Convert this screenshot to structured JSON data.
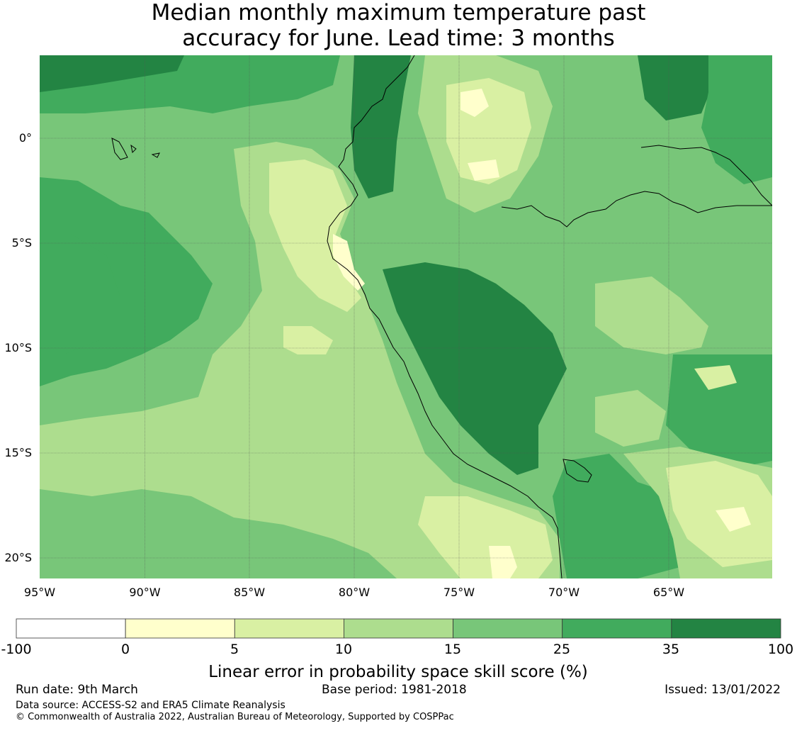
{
  "title": {
    "line1": "Median monthly maximum temperature past",
    "line2": "accuracy for June. Lead time: 3 months"
  },
  "map": {
    "lon_labels": [
      "95°W",
      "90°W",
      "85°W",
      "80°W",
      "75°W",
      "70°W",
      "65°W"
    ],
    "lat_labels": [
      "0°",
      "5°S",
      "10°S",
      "15°S",
      "20°S"
    ],
    "gridlines": true,
    "region": "Peru / Ecuador / eastern Pacific"
  },
  "colorbar": {
    "label": "Linear error in probability space skill score (%)",
    "ticks": [
      "-100",
      "0",
      "5",
      "10",
      "15",
      "25",
      "35",
      "100"
    ],
    "colors": [
      "#ffffff",
      "#ffffcc",
      "#d9f0a3",
      "#addd8e",
      "#78c679",
      "#41ab5d",
      "#238443"
    ]
  },
  "footer": {
    "run_date": "Run date: 9th March",
    "base_period": "Base period: 1981-2018",
    "issued": "Issued: 13/01/2022",
    "data_source": "Data source: ACCESS-S2 and ERA5 Climate Reanalysis",
    "copyright": "© Commonwealth of Australia 2022, Australian Bureau of Meteorology, Supported by COSPPac"
  }
}
